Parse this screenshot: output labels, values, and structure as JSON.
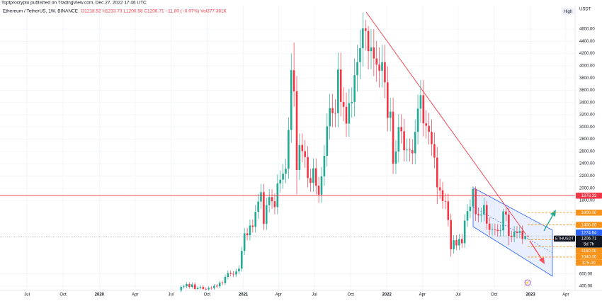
{
  "chart_data": {
    "type": "candlestick",
    "caption": "Toptprocrypto published on TradingView.com, Dec 27, 2022 17:46 UTC",
    "title": "Ethereum / TetherUS, 1W, BINANCE",
    "legend": "O1218.52 H1233.73 L1200.58 C1206.71 −11.80 (−0.97%) Vol377.381K",
    "y_unit": "USDT",
    "badge": "High",
    "up_color": "#22ab94",
    "down_color": "#f23645",
    "grid": true,
    "xlim": [
      -9.8,
      199.1
    ],
    "ylim": [
      330,
      4960
    ],
    "xticks": [
      {
        "value": 0,
        "label": "Jul"
      },
      {
        "value": 13.1,
        "label": "Oct"
      },
      {
        "value": 26.3,
        "label": "2020"
      },
      {
        "value": 39.3,
        "label": "Apr"
      },
      {
        "value": 52.3,
        "label": "Jul"
      },
      {
        "value": 65.4,
        "label": "Oct"
      },
      {
        "value": 78.6,
        "label": "2021"
      },
      {
        "value": 91.4,
        "label": "Apr"
      },
      {
        "value": 104.4,
        "label": "Jul"
      },
      {
        "value": 117.6,
        "label": "Oct"
      },
      {
        "value": 130.7,
        "label": "2022"
      },
      {
        "value": 143.6,
        "label": "Apr"
      },
      {
        "value": 156.6,
        "label": "Jul"
      },
      {
        "value": 169.7,
        "label": "Oct"
      },
      {
        "value": 182.9,
        "label": "2023"
      },
      {
        "value": 195.7,
        "label": "Apr"
      }
    ],
    "yticks": [
      {
        "value": 400,
        "label": "400.00"
      },
      {
        "value": 600,
        "label": "600.00"
      },
      {
        "value": 1800,
        "label": "1800.00"
      },
      {
        "value": 2000,
        "label": "2000.00"
      },
      {
        "value": 2200,
        "label": "2200.00"
      },
      {
        "value": 2400,
        "label": "2400.00"
      },
      {
        "value": 2600,
        "label": "2600.00"
      },
      {
        "value": 2800,
        "label": "2800.00"
      },
      {
        "value": 3000,
        "label": "3000.00"
      },
      {
        "value": 3200,
        "label": "3200.00"
      },
      {
        "value": 3400,
        "label": "3400.00"
      },
      {
        "value": 3600,
        "label": "3600.00"
      },
      {
        "value": 3800,
        "label": "3800.00"
      },
      {
        "value": 4000,
        "label": "4000.00"
      },
      {
        "value": 4200,
        "label": "4200.00"
      },
      {
        "value": 4400,
        "label": "4400.00"
      },
      {
        "value": 4600,
        "label": "4600.00"
      }
    ],
    "candles": {
      "x": [
        56,
        57,
        58,
        59,
        60,
        61,
        62,
        63,
        64,
        65,
        66,
        67,
        68,
        69,
        70,
        71,
        72,
        73,
        74,
        75,
        76,
        77,
        78,
        79,
        80,
        81,
        82,
        83,
        84,
        85,
        86,
        87,
        88,
        89,
        90,
        91,
        92,
        93,
        94,
        95,
        96,
        97,
        98,
        99,
        100,
        101,
        102,
        103,
        104,
        105,
        106,
        107,
        108,
        109,
        110,
        111,
        112,
        113,
        114,
        115,
        116,
        117,
        118,
        119,
        120,
        121,
        122,
        123,
        124,
        125,
        126,
        127,
        128,
        129,
        130,
        131,
        132,
        133,
        134,
        135,
        136,
        137,
        138,
        139,
        140,
        141,
        142,
        143,
        144,
        145,
        146,
        147,
        148,
        149,
        150,
        151,
        152,
        153,
        154,
        155,
        156,
        157,
        158,
        159,
        160,
        161,
        162,
        163,
        164,
        165,
        166,
        167,
        168,
        169,
        170,
        171,
        172,
        173,
        174,
        175,
        176,
        177,
        178,
        179,
        180,
        181,
        182
      ],
      "open": [
        321,
        386,
        395,
        433,
        388,
        428,
        353,
        370,
        385,
        354,
        346,
        370,
        368,
        406,
        396,
        455,
        447,
        550,
        613,
        601,
        590,
        640,
        685,
        975,
        1262,
        1232,
        1390,
        1369,
        1614,
        1781,
        1935,
        1416,
        1723,
        1855,
        1786,
        1691,
        2077,
        2139,
        2237,
        2317,
        2952,
        3928,
        3583,
        2298,
        2706,
        2606,
        2509,
        2166,
        2086,
        2325,
        2040,
        1894,
        2193,
        2530,
        3011,
        3309,
        3226,
        3225,
        3940,
        3410,
        3330,
        3056,
        3390,
        3410,
        3847,
        4061,
        4288,
        4612,
        4570,
        4240,
        4300,
        4120,
        4020,
        3920,
        4060,
        3730,
        3150,
        3250,
        2400,
        2600,
        3000,
        2930,
        2620,
        2630,
        2620,
        2570,
        2920,
        3300,
        3520,
        3060,
        3020,
        2920,
        2720,
        2500,
        2015,
        1965,
        1790,
        1785,
        1480,
        1000,
        1150,
        1065,
        1170,
        1100,
        1470,
        1625,
        1700,
        1985,
        1575,
        1555,
        1570,
        1725,
        1420,
        1320,
        1330,
        1320,
        1300,
        1310,
        1620,
        1570,
        1220,
        1200,
        1290,
        1270,
        1300,
        1170,
        1218.52
      ],
      "high": [
        413,
        423,
        463,
        463,
        458,
        458,
        396,
        412,
        412,
        379,
        396,
        396,
        434,
        434,
        487,
        487,
        589,
        656,
        656,
        643,
        685,
        733,
        1043,
        1350,
        1350,
        1487,
        1487,
        1727,
        1906,
        2070,
        2070,
        1844,
        1985,
        1985,
        1911,
        2222,
        2289,
        2394,
        2479,
        3159,
        4203,
        4380,
        3834,
        2895,
        2895,
        2788,
        2685,
        2318,
        2488,
        2488,
        2183,
        2347,
        2707,
        3222,
        3541,
        3541,
        3452,
        4216,
        4216,
        3649,
        3563,
        3627,
        3649,
        4116,
        4345,
        4588,
        4870,
        4750,
        4650,
        4601,
        4601,
        4408,
        4301,
        4344,
        4344,
        3991,
        3478,
        3478,
        2782,
        3210,
        3210,
        3135,
        2814,
        2814,
        2803,
        3124,
        3531,
        3766,
        3766,
        3274,
        3231,
        3124,
        2910,
        2675,
        2156,
        2103,
        1915,
        1910,
        1584,
        1231,
        1231,
        1252,
        1252,
        1573,
        1739,
        1819,
        2030,
        2030,
        1685,
        1680,
        1846,
        1790,
        1519,
        1423,
        1423,
        1412,
        1402,
        1660,
        1680,
        1680,
        1305,
        1380,
        1380,
        1391,
        1391,
        1250,
        1233.73
      ],
      "low": [
        299,
        359,
        367,
        361,
        361,
        328,
        328,
        344,
        329,
        322,
        322,
        342,
        342,
        368,
        368,
        416,
        416,
        512,
        559,
        549,
        549,
        595,
        637,
        907,
        1146,
        1146,
        1273,
        1273,
        1501,
        1656,
        1317,
        1317,
        1602,
        1661,
        1573,
        1573,
        1932,
        1989,
        2080,
        2155,
        2745,
        3332,
        1900,
        2137,
        2424,
        2333,
        2014,
        1940,
        1940,
        1897,
        1761,
        1761,
        2039,
        2353,
        2800,
        3000,
        2999,
        2999,
        3171,
        3097,
        2842,
        2842,
        3153,
        3171,
        3578,
        3777,
        3988,
        4250,
        3943,
        3943,
        3832,
        3739,
        3646,
        3646,
        3469,
        2930,
        2930,
        2232,
        2232,
        2418,
        2725,
        2437,
        2437,
        2437,
        2390,
        2390,
        2716,
        3069,
        2846,
        2809,
        2716,
        2530,
        2325,
        1740,
        1827,
        1665,
        1660,
        1376,
        880,
        930,
        990,
        990,
        1023,
        1023,
        1367,
        1511,
        1581,
        1465,
        1446,
        1446,
        1460,
        1321,
        1228,
        1228,
        1228,
        1209,
        1209,
        1218,
        1460,
        1070,
        1116,
        1116,
        1181,
        1181,
        1088,
        1150,
        1200.58
      ],
      "close": [
        386,
        395,
        433,
        388,
        428,
        353,
        370,
        385,
        354,
        346,
        370,
        368,
        406,
        396,
        455,
        447,
        550,
        613,
        601,
        590,
        640,
        685,
        975,
        1262,
        1232,
        1390,
        1369,
        1614,
        1781,
        1935,
        1416,
        1723,
        1855,
        1786,
        1691,
        2077,
        2139,
        2237,
        2317,
        2952,
        3928,
        3583,
        2298,
        2706,
        2606,
        2509,
        2166,
        2086,
        2325,
        2040,
        1894,
        2193,
        2530,
        3011,
        3309,
        3226,
        3225,
        3940,
        3410,
        3330,
        3056,
        3390,
        3410,
        3847,
        4061,
        4288,
        4612,
        4570,
        4240,
        4300,
        4120,
        4020,
        3920,
        4060,
        3730,
        3150,
        3250,
        2400,
        2600,
        3000,
        2930,
        2620,
        2630,
        2620,
        2570,
        2920,
        3300,
        3520,
        3060,
        3020,
        2920,
        2720,
        2500,
        2015,
        1965,
        1790,
        1785,
        1480,
        1000,
        1150,
        1065,
        1170,
        1100,
        1470,
        1625,
        1700,
        1985,
        1575,
        1555,
        1570,
        1725,
        1420,
        1320,
        1330,
        1320,
        1300,
        1310,
        1620,
        1570,
        1220,
        1200,
        1290,
        1270,
        1300,
        1170,
        1218.52,
        1206.71
      ]
    },
    "levels": [
      {
        "value": 1878.33,
        "color": "#f23645",
        "line": "full"
      },
      {
        "value": 1600,
        "label": "1600.00",
        "color": "#f7931a",
        "line": "dashed"
      },
      {
        "value": 1400,
        "label": "1400.00",
        "color": "#f7931a",
        "line": "dashed"
      },
      {
        "value": 1274.64,
        "color": "#2962ff",
        "line": "none"
      },
      {
        "value": 1160,
        "label": "1160.00",
        "color": "#f7931a",
        "line": "dashed"
      },
      {
        "value": 1040,
        "label": "1040.00",
        "color": "#f7931a",
        "line": "dashed"
      },
      {
        "value": 875,
        "label": "875.00",
        "color": "#f7931a",
        "line": "dashed"
      }
    ],
    "last_price": {
      "value": 1206.71,
      "symbol": "ETHUSDT",
      "countdown": "5d 7h",
      "color": "#131722"
    }
  }
}
